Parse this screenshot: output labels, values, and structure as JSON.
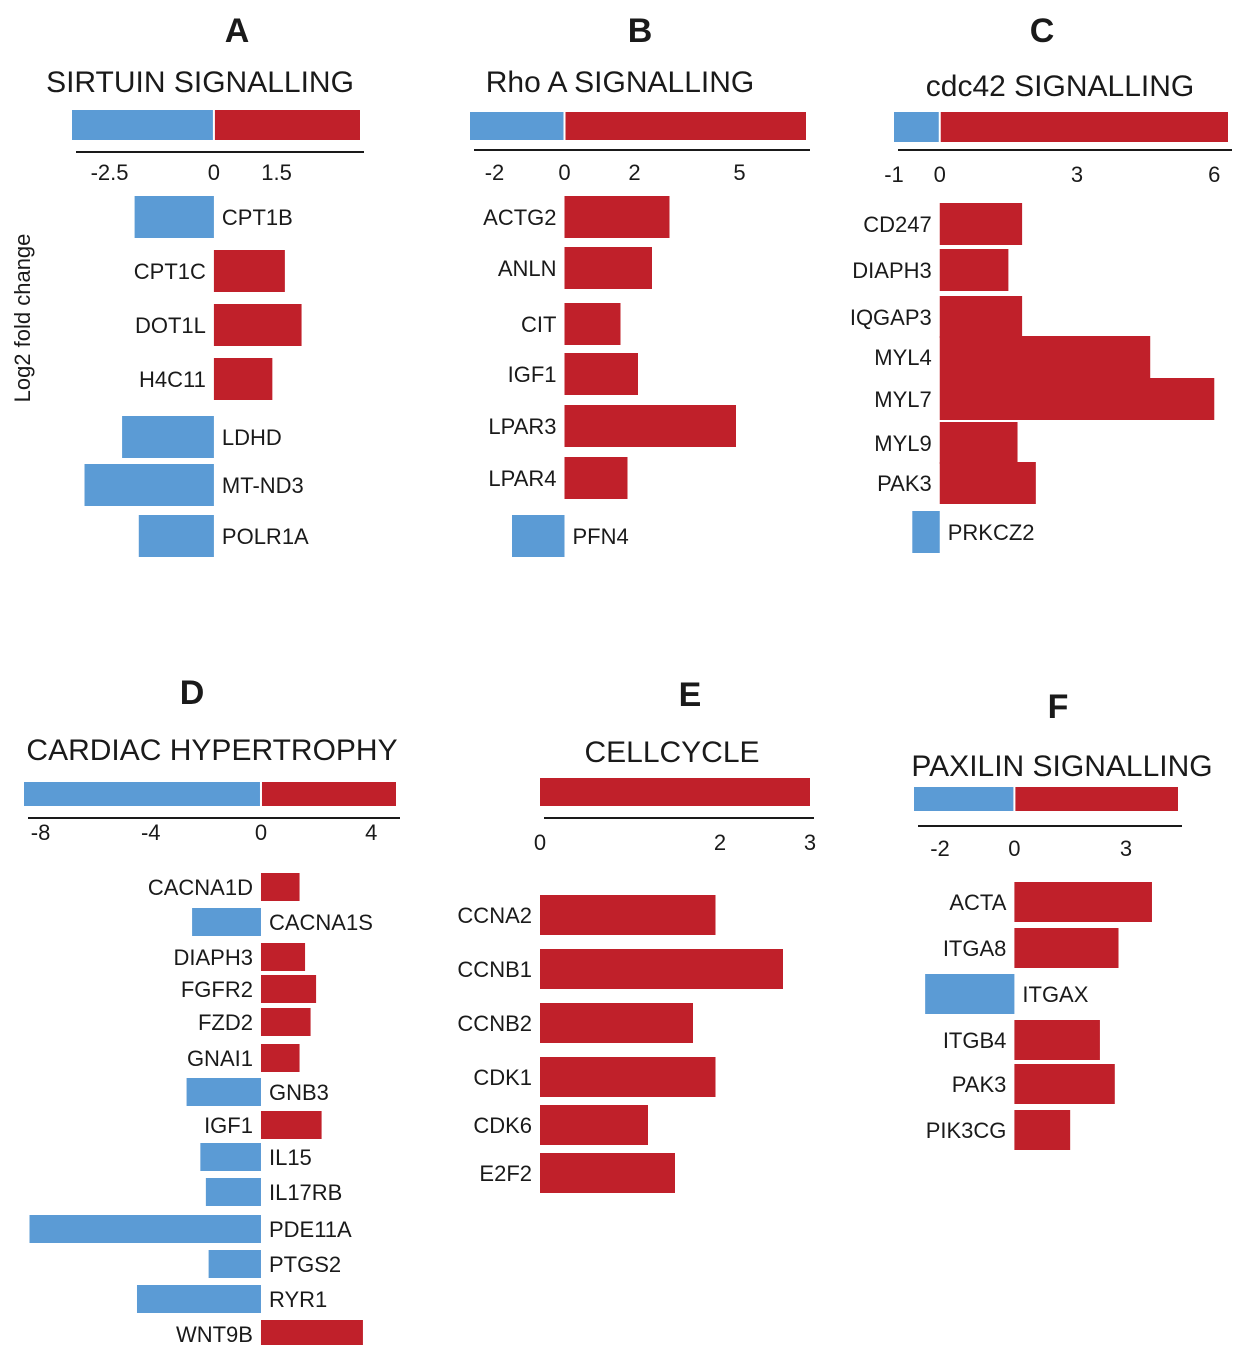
{
  "figure": {
    "ylabel": "Log2 fold change",
    "colors": {
      "down": "#5b9bd5",
      "up": "#c0202a",
      "axis": "#1a1a1a"
    }
  },
  "chart_data": [
    {
      "type": "bar",
      "orientation": "horizontal",
      "panel": "A",
      "title": "SIRTUIN SIGNALLING",
      "xlabel": "",
      "ylabel": "Log2 fold change",
      "xticks": [
        -2.5,
        0,
        1.5
      ],
      "xlim": [
        -3.4,
        3.5
      ],
      "categories": [
        "CPT1B",
        "CPT1C",
        "DOT1L",
        "H4C11",
        "LDHD",
        "MT-ND3",
        "POLR1A"
      ],
      "values": [
        -1.9,
        1.7,
        2.1,
        1.4,
        -2.2,
        -3.1,
        -1.8
      ]
    },
    {
      "type": "bar",
      "orientation": "horizontal",
      "panel": "B",
      "title": "Rho A SIGNALLING",
      "xlabel": "",
      "ylabel": "",
      "xticks": [
        -2,
        0,
        2,
        5
      ],
      "xlim": [
        -2.7,
        6.9
      ],
      "categories": [
        "ACTG2",
        "ANLN",
        "CIT",
        "IGF1",
        "LPAR3",
        "LPAR4",
        "PFN4"
      ],
      "values": [
        3.0,
        2.5,
        1.6,
        2.1,
        4.9,
        1.8,
        -1.5
      ]
    },
    {
      "type": "bar",
      "orientation": "horizontal",
      "panel": "C",
      "title": "cdc42 SIGNALLING",
      "xlabel": "",
      "ylabel": "",
      "xticks": [
        -1,
        0,
        3,
        6
      ],
      "xlim": [
        -1.0,
        6.3
      ],
      "categories": [
        "CD247",
        "DIAPH3",
        "IQGAP3",
        "MYL4",
        "MYL7",
        "MYL9",
        "PAK3",
        "PRKCZ2"
      ],
      "values": [
        1.8,
        1.5,
        1.8,
        4.6,
        6.0,
        1.7,
        2.1,
        -0.6
      ]
    },
    {
      "type": "bar",
      "orientation": "horizontal",
      "panel": "D",
      "title": "CARDIAC HYPERTROPHY",
      "xlabel": "",
      "ylabel": "",
      "xticks": [
        -8,
        -4,
        0,
        4
      ],
      "xlim": [
        -8.6,
        4.9
      ],
      "categories": [
        "CACNA1D",
        "CACNA1S",
        "DIAPH3",
        "FGFR2",
        "FZD2",
        "GNAI1",
        "GNB3",
        "IGF1",
        "IL15",
        "IL17RB",
        "PDE11A",
        "PTGS2",
        "RYR1",
        "WNT9B"
      ],
      "values": [
        1.4,
        -2.5,
        1.6,
        2.0,
        1.8,
        1.4,
        -2.7,
        2.2,
        -2.2,
        -2.0,
        -8.4,
        -1.9,
        -4.5,
        3.7
      ]
    },
    {
      "type": "bar",
      "orientation": "horizontal",
      "panel": "E",
      "title": "CELLCYCLE",
      "xlabel": "",
      "ylabel": "",
      "xticks": [
        0,
        2,
        3
      ],
      "xlim": [
        0,
        3.0
      ],
      "categories": [
        "CCNA2",
        "CCNB1",
        "CCNB2",
        "CDK1",
        "CDK6",
        "E2F2"
      ],
      "values": [
        1.95,
        2.7,
        1.7,
        1.95,
        1.2,
        1.5
      ]
    },
    {
      "type": "bar",
      "orientation": "horizontal",
      "panel": "F",
      "title": "PAXILIN SIGNALLING",
      "xlabel": "",
      "ylabel": "",
      "xticks": [
        -2,
        0,
        3
      ],
      "xlim": [
        -2.7,
        4.4
      ],
      "categories": [
        "ACTA",
        "ITGA8",
        "ITGAX",
        "ITGB4",
        "PAK3",
        "PIK3CG"
      ],
      "values": [
        3.7,
        2.8,
        -2.4,
        2.3,
        2.7,
        1.5
      ]
    }
  ]
}
